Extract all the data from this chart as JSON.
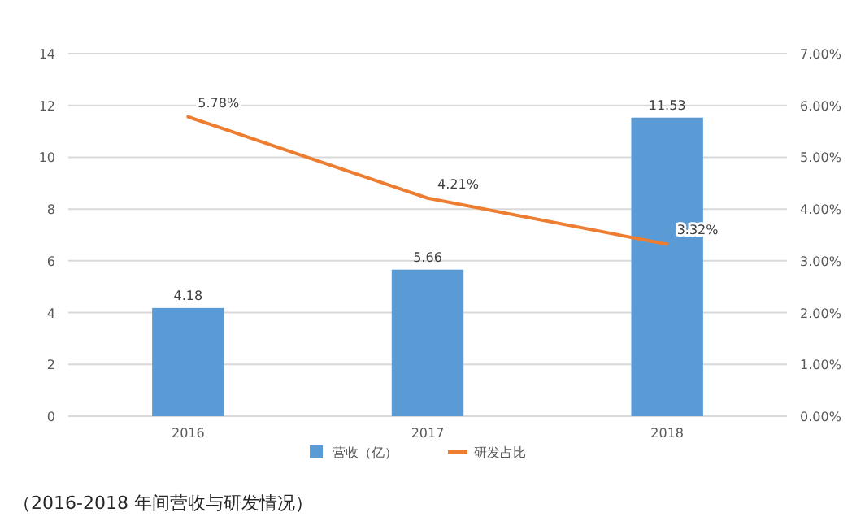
{
  "chart_data": {
    "type": "bar",
    "categories": [
      "2016",
      "2017",
      "2018"
    ],
    "series": [
      {
        "name": "营收（亿）",
        "color": "#5b9bd5",
        "values": [
          4.18,
          5.66,
          11.53
        ],
        "value_labels": [
          "4.18",
          "5.66",
          "11.53"
        ]
      },
      {
        "name": "研发占比",
        "type": "line",
        "axis": "y2",
        "color": "#ed7d31",
        "values": [
          5.78,
          4.21,
          3.32
        ],
        "value_labels": [
          "5.78%",
          "4.21%",
          "3.32%"
        ]
      }
    ],
    "ylim": [
      0,
      14
    ],
    "yticks": [
      0,
      2,
      4,
      6,
      8,
      10,
      12,
      14
    ],
    "y2lim": [
      0,
      7
    ],
    "y2ticks": [
      {
        "value": 0,
        "label": "0.00%"
      },
      {
        "value": 1,
        "label": "1.00%"
      },
      {
        "value": 2,
        "label": "2.00%"
      },
      {
        "value": 3,
        "label": "3.00%"
      },
      {
        "value": 4,
        "label": "4.00%"
      },
      {
        "value": 5,
        "label": "5.00%"
      },
      {
        "value": 6,
        "label": "6.00%"
      },
      {
        "value": 7,
        "label": "7.00%"
      }
    ],
    "grid": "y",
    "legend": "bottom",
    "marker": "none",
    "line_style": "solid",
    "annotations": [
      "（2016-2018 年间营收与研发情况）"
    ]
  }
}
